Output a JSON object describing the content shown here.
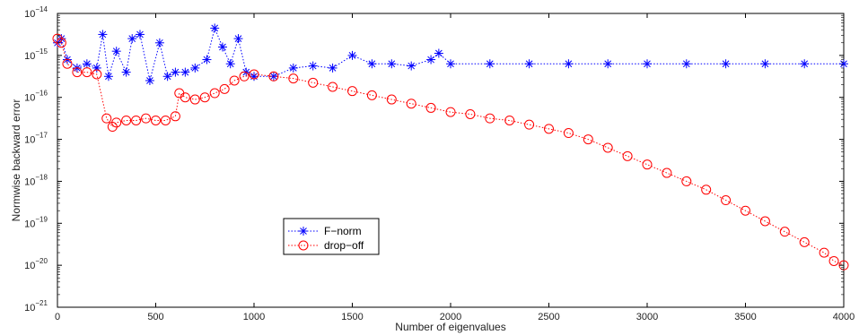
{
  "chart_data": {
    "type": "scatter",
    "title": "",
    "xlabel": "Number of eigenvalues",
    "ylabel": "Normwise backward error",
    "xlim": [
      0,
      4000
    ],
    "ylim_exponent": [
      -21,
      -14
    ],
    "yscale": "log",
    "grid": false,
    "legend_placement": "lower-left-center",
    "x_ticks": [
      "0",
      "500",
      "1000",
      "1500",
      "2000",
      "2500",
      "3000",
      "3500",
      "4000"
    ],
    "y_ticks": [
      {
        "base": "10",
        "exp": "−21"
      },
      {
        "base": "10",
        "exp": "−20"
      },
      {
        "base": "10",
        "exp": "−19"
      },
      {
        "base": "10",
        "exp": "−18"
      },
      {
        "base": "10",
        "exp": "−17"
      },
      {
        "base": "10",
        "exp": "−16"
      },
      {
        "base": "10",
        "exp": "−15"
      },
      {
        "base": "10",
        "exp": "−14"
      }
    ],
    "series": [
      {
        "name": "F−norm",
        "color": "#0000ff",
        "marker": "asterisk",
        "line": "dotted",
        "points": [
          [
            0,
            -14.7
          ],
          [
            20,
            -14.6
          ],
          [
            50,
            -15.1
          ],
          [
            100,
            -15.3
          ],
          [
            150,
            -15.2
          ],
          [
            200,
            -15.3
          ],
          [
            230,
            -14.5
          ],
          [
            260,
            -15.5
          ],
          [
            300,
            -14.9
          ],
          [
            350,
            -15.4
          ],
          [
            380,
            -14.6
          ],
          [
            420,
            -14.5
          ],
          [
            470,
            -15.6
          ],
          [
            520,
            -14.7
          ],
          [
            560,
            -15.5
          ],
          [
            600,
            -15.4
          ],
          [
            650,
            -15.4
          ],
          [
            700,
            -15.3
          ],
          [
            760,
            -15.1
          ],
          [
            800,
            -14.35
          ],
          [
            840,
            -14.8
          ],
          [
            880,
            -15.2
          ],
          [
            920,
            -14.6
          ],
          [
            960,
            -15.4
          ],
          [
            1000,
            -15.5
          ],
          [
            1100,
            -15.5
          ],
          [
            1200,
            -15.3
          ],
          [
            1300,
            -15.25
          ],
          [
            1400,
            -15.3
          ],
          [
            1500,
            -15.0
          ],
          [
            1600,
            -15.2
          ],
          [
            1700,
            -15.2
          ],
          [
            1800,
            -15.25
          ],
          [
            1900,
            -15.1
          ],
          [
            1940,
            -14.95
          ],
          [
            2000,
            -15.2
          ],
          [
            2200,
            -15.2
          ],
          [
            2400,
            -15.2
          ],
          [
            2600,
            -15.2
          ],
          [
            2800,
            -15.2
          ],
          [
            3000,
            -15.2
          ],
          [
            3200,
            -15.2
          ],
          [
            3400,
            -15.2
          ],
          [
            3600,
            -15.2
          ],
          [
            3800,
            -15.2
          ],
          [
            4000,
            -15.2
          ]
        ]
      },
      {
        "name": "drop−off",
        "color": "#ff0000",
        "marker": "circle",
        "line": "dotted",
        "points": [
          [
            0,
            -14.6
          ],
          [
            20,
            -14.7
          ],
          [
            50,
            -15.2
          ],
          [
            100,
            -15.4
          ],
          [
            150,
            -15.4
          ],
          [
            200,
            -15.45
          ],
          [
            250,
            -16.5
          ],
          [
            280,
            -16.7
          ],
          [
            300,
            -16.6
          ],
          [
            350,
            -16.55
          ],
          [
            400,
            -16.55
          ],
          [
            450,
            -16.5
          ],
          [
            500,
            -16.55
          ],
          [
            550,
            -16.55
          ],
          [
            600,
            -16.45
          ],
          [
            620,
            -15.9
          ],
          [
            650,
            -16.0
          ],
          [
            700,
            -16.05
          ],
          [
            750,
            -16.0
          ],
          [
            800,
            -15.9
          ],
          [
            850,
            -15.8
          ],
          [
            900,
            -15.6
          ],
          [
            950,
            -15.5
          ],
          [
            1000,
            -15.45
          ],
          [
            1100,
            -15.5
          ],
          [
            1200,
            -15.55
          ],
          [
            1300,
            -15.65
          ],
          [
            1400,
            -15.75
          ],
          [
            1500,
            -15.85
          ],
          [
            1600,
            -15.95
          ],
          [
            1700,
            -16.05
          ],
          [
            1800,
            -16.15
          ],
          [
            1900,
            -16.25
          ],
          [
            2000,
            -16.35
          ],
          [
            2100,
            -16.4
          ],
          [
            2200,
            -16.5
          ],
          [
            2300,
            -16.55
          ],
          [
            2400,
            -16.65
          ],
          [
            2500,
            -16.75
          ],
          [
            2600,
            -16.85
          ],
          [
            2700,
            -17.0
          ],
          [
            2800,
            -17.2
          ],
          [
            2900,
            -17.4
          ],
          [
            3000,
            -17.6
          ],
          [
            3100,
            -17.8
          ],
          [
            3200,
            -18.0
          ],
          [
            3300,
            -18.2
          ],
          [
            3400,
            -18.45
          ],
          [
            3500,
            -18.7
          ],
          [
            3600,
            -18.95
          ],
          [
            3700,
            -19.2
          ],
          [
            3800,
            -19.45
          ],
          [
            3900,
            -19.7
          ],
          [
            3950,
            -19.9
          ],
          [
            4000,
            -20.0
          ]
        ]
      }
    ]
  }
}
